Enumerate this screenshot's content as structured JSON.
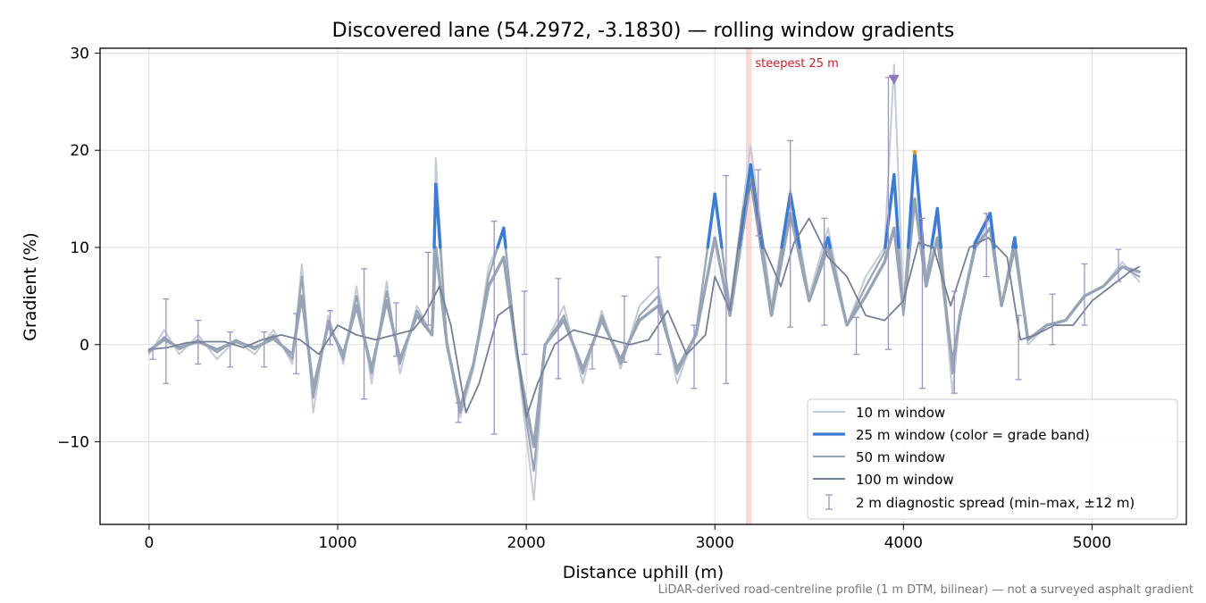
{
  "chart_data": {
    "type": "line",
    "title": "Discovered lane (54.2972, -3.1830) — rolling window gradients",
    "xlabel": "Distance uphill (m)",
    "ylabel": "Gradient (%)",
    "xlim": [
      -260,
      5500
    ],
    "ylim": [
      -18.5,
      30.5
    ],
    "xticks": [
      0,
      1000,
      2000,
      3000,
      4000,
      5000
    ],
    "yticks": [
      -10,
      0,
      10,
      20,
      30
    ],
    "grid": true,
    "legend_position": "bottom-right",
    "annotation": {
      "text": "steepest 25 m",
      "x_start": 3165,
      "x_end": 3195
    },
    "peak_marker": {
      "x": 3950,
      "y": 27.3
    },
    "caption": "LiDAR-derived road-centreline profile (1 m DTM, bilinear) — not a surveyed asphalt gradient",
    "colors": {
      "w10": "#c3cad8",
      "w25_steep": "#3a7bd5",
      "w25_steep_extreme": "#e6a020",
      "w50": "#97a4b5",
      "w100": "#747f95",
      "spread": "#9b94c2",
      "band": "#f4a9a9",
      "band_label": "#c81e2a",
      "marker": "#8a78b8"
    },
    "series": [
      {
        "name": "10 m window",
        "x": [
          0,
          80,
          160,
          260,
          360,
          460,
          560,
          660,
          760,
          810,
          870,
          950,
          1030,
          1100,
          1180,
          1260,
          1330,
          1420,
          1500,
          1520,
          1580,
          1650,
          1720,
          1800,
          1880,
          1950,
          2040,
          2100,
          2200,
          2300,
          2400,
          2500,
          2600,
          2700,
          2800,
          2900,
          3000,
          3080,
          3190,
          3300,
          3400,
          3500,
          3600,
          3700,
          3800,
          3900,
          3950,
          4000,
          4060,
          4120,
          4180,
          4260,
          4300,
          4380,
          4460,
          4520,
          4590,
          4660,
          4760,
          4860,
          4960,
          5060,
          5160,
          5250
        ],
        "values": [
          -1.0,
          1.5,
          -1.0,
          1.0,
          -1.5,
          0.5,
          -1.0,
          1.5,
          -2.0,
          8.3,
          -7.0,
          3.0,
          -2.0,
          6.0,
          -4.0,
          6.5,
          -3.0,
          4.0,
          1.0,
          19.2,
          0.0,
          -7.5,
          -2.5,
          8.0,
          11.5,
          -1.0,
          -16.0,
          0.0,
          4.0,
          -4.0,
          3.5,
          -2.5,
          4.0,
          6.0,
          -4.0,
          1.5,
          15.5,
          4.0,
          20.5,
          4.0,
          16.0,
          5.0,
          12.0,
          2.0,
          7.0,
          10.0,
          28.8,
          4.0,
          20.0,
          7.0,
          13.0,
          -5.0,
          3.0,
          10.0,
          13.0,
          4.0,
          10.0,
          0.0,
          2.0,
          2.5,
          5.0,
          6.0,
          8.5,
          6.5
        ]
      },
      {
        "name": "25 m window (color = grade band)",
        "x": [
          0,
          80,
          160,
          260,
          360,
          460,
          560,
          660,
          760,
          810,
          870,
          950,
          1030,
          1100,
          1180,
          1260,
          1330,
          1420,
          1500,
          1520,
          1580,
          1650,
          1720,
          1800,
          1880,
          1950,
          2040,
          2100,
          2200,
          2300,
          2400,
          2500,
          2600,
          2700,
          2800,
          2900,
          3000,
          3080,
          3190,
          3300,
          3400,
          3500,
          3600,
          3700,
          3800,
          3900,
          3950,
          4000,
          4060,
          4120,
          4180,
          4260,
          4300,
          4380,
          4460,
          4520,
          4590,
          4660,
          4760,
          4860,
          4960,
          5060,
          5160,
          5250
        ],
        "values": [
          -0.8,
          0.8,
          -0.5,
          0.5,
          -0.8,
          0.5,
          -0.5,
          1.0,
          -1.5,
          7.0,
          -5.5,
          2.5,
          -1.5,
          5.0,
          -3.0,
          5.5,
          -2.0,
          3.5,
          1.0,
          16.5,
          0.0,
          -7.0,
          -2.0,
          7.0,
          12.0,
          -1.0,
          -13.0,
          0.0,
          3.0,
          -3.0,
          3.0,
          -2.0,
          3.0,
          5.0,
          -3.0,
          1.0,
          15.5,
          3.5,
          18.5,
          3.5,
          15.5,
          4.5,
          11.0,
          2.0,
          6.0,
          9.5,
          17.5,
          3.0,
          19.8,
          6.5,
          14.0,
          -3.0,
          3.0,
          10.5,
          13.5,
          4.0,
          11.0,
          0.5,
          2.0,
          2.5,
          5.0,
          6.0,
          8.0,
          7.0
        ]
      },
      {
        "name": "50 m window",
        "x": [
          0,
          80,
          160,
          260,
          360,
          460,
          560,
          660,
          760,
          810,
          870,
          950,
          1030,
          1100,
          1180,
          1260,
          1330,
          1420,
          1500,
          1520,
          1580,
          1650,
          1720,
          1800,
          1880,
          1950,
          2040,
          2100,
          2200,
          2300,
          2400,
          2500,
          2600,
          2700,
          2800,
          2900,
          3000,
          3080,
          3190,
          3300,
          3400,
          3500,
          3600,
          3700,
          3800,
          3900,
          3950,
          4000,
          4060,
          4120,
          4180,
          4260,
          4300,
          4380,
          4460,
          4520,
          4590,
          4660,
          4760,
          4860,
          4960,
          5060,
          5160,
          5250
        ],
        "values": [
          -0.6,
          0.5,
          -0.3,
          0.3,
          -0.5,
          0.3,
          -0.3,
          0.6,
          -1.0,
          5.0,
          -4.5,
          2.0,
          -1.0,
          4.0,
          -2.5,
          4.5,
          -1.5,
          3.0,
          1.0,
          10.0,
          0.0,
          -6.5,
          -2.0,
          6.0,
          9.0,
          -1.0,
          -10.5,
          0.0,
          2.5,
          -2.5,
          2.5,
          -1.5,
          2.5,
          4.0,
          -2.5,
          1.0,
          11.0,
          3.0,
          17.0,
          3.0,
          13.5,
          4.5,
          10.0,
          2.0,
          5.0,
          8.5,
          12.0,
          3.5,
          15.0,
          6.0,
          11.0,
          -2.0,
          3.0,
          10.0,
          12.0,
          4.0,
          10.0,
          0.5,
          2.0,
          2.5,
          5.0,
          6.0,
          8.0,
          7.5
        ]
      },
      {
        "name": "100 m window",
        "x": [
          0,
          100,
          200,
          300,
          400,
          500,
          600,
          700,
          800,
          900,
          1000,
          1100,
          1200,
          1300,
          1400,
          1460,
          1540,
          1600,
          1680,
          1750,
          1850,
          1920,
          2000,
          2060,
          2150,
          2250,
          2350,
          2450,
          2550,
          2650,
          2750,
          2850,
          2950,
          3000,
          3080,
          3150,
          3200,
          3260,
          3350,
          3420,
          3500,
          3600,
          3700,
          3800,
          3900,
          4000,
          4080,
          4160,
          4250,
          4350,
          4450,
          4550,
          4620,
          4700,
          4800,
          4900,
          5000,
          5100,
          5200,
          5250
        ],
        "values": [
          -0.5,
          -0.3,
          0.2,
          0.3,
          0.3,
          -0.3,
          0.5,
          1.0,
          0.5,
          -1.0,
          2.0,
          1.0,
          0.5,
          1.0,
          1.5,
          3.0,
          6.0,
          2.0,
          -7.0,
          -4.0,
          3.0,
          4.0,
          -7.5,
          -4.0,
          0.0,
          1.5,
          1.0,
          0.5,
          0.0,
          0.5,
          3.5,
          -1.0,
          1.0,
          7.0,
          3.5,
          14.0,
          17.0,
          10.0,
          6.0,
          10.5,
          13.0,
          9.0,
          7.0,
          3.0,
          2.5,
          4.5,
          10.5,
          10.0,
          4.0,
          10.0,
          11.0,
          9.0,
          0.5,
          1.0,
          2.0,
          2.0,
          4.5,
          6.0,
          7.5,
          8.0
        ]
      },
      {
        "name": "2 m diagnostic spread (min–max, ±12 m)",
        "x": [
          20,
          90,
          260,
          430,
          610,
          780,
          960,
          1140,
          1310,
          1480,
          1640,
          1830,
          1990,
          2170,
          2350,
          2520,
          2700,
          2890,
          3060,
          3230,
          3400,
          3580,
          3750,
          3920,
          4100,
          4270,
          4440,
          4610,
          4790,
          4960,
          5140
        ],
        "min": [
          -1.5,
          -4.0,
          -2.0,
          -2.3,
          -2.3,
          -3.0,
          0.0,
          -5.6,
          -1.2,
          2.0,
          -8.0,
          -9.2,
          -1.0,
          -3.5,
          -2.5,
          -1.8,
          -1.0,
          -4.5,
          -4.0,
          11.2,
          1.8,
          2.0,
          -1.0,
          -0.5,
          -4.5,
          -5.0,
          7.0,
          -3.6,
          0.0,
          2.0,
          6.5
        ],
        "max": [
          -0.5,
          4.7,
          2.5,
          1.3,
          1.3,
          3.2,
          3.5,
          7.8,
          4.3,
          9.5,
          -6.0,
          12.7,
          5.5,
          6.8,
          0.0,
          5.0,
          9.0,
          2.0,
          17.4,
          18.0,
          21.0,
          13.0,
          2.8,
          27.5,
          13.0,
          5.5,
          13.5,
          3.0,
          5.2,
          8.3,
          9.8
        ]
      }
    ]
  }
}
